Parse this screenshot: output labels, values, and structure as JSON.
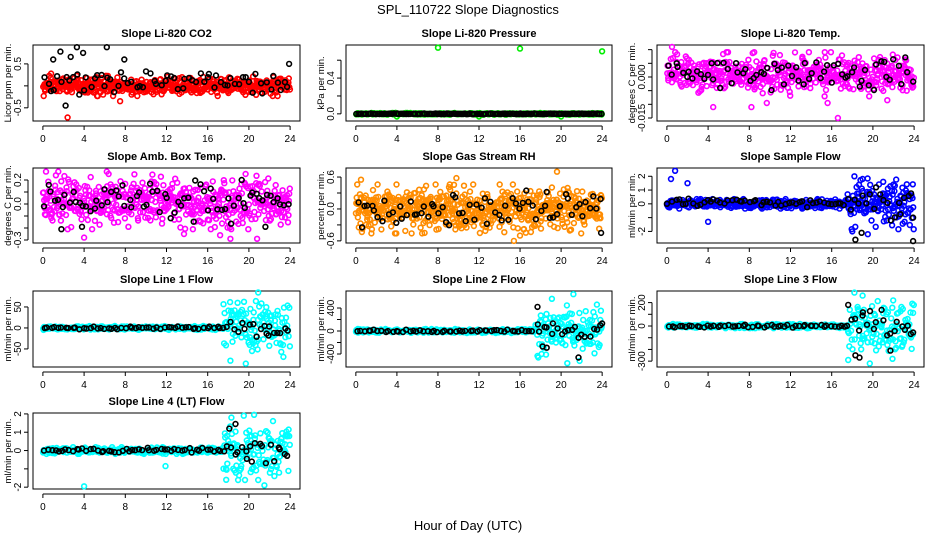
{
  "title": "SPL_110722  Slope Diagnostics",
  "xlabel": "Hour of Day (UTC)",
  "chart_data": [
    {
      "type": "scatter",
      "title": "Slope Li-820 CO2",
      "ylabel": "Licor ppm per min.",
      "color": "#ff0000",
      "xlim": [
        0,
        24
      ],
      "xticks": [
        0,
        4,
        8,
        12,
        16,
        20,
        24
      ],
      "ylim": [
        -0.8,
        0.93
      ],
      "yticks": [
        {
          "v": 0.5,
          "l": "0.5"
        },
        {
          "v": 0,
          "l": ""
        },
        {
          "v": -0.5,
          "l": "-0.5"
        }
      ],
      "cloud": {
        "n": 520,
        "mean": 0,
        "sd": [
          0.1,
          0.1
        ]
      },
      "hourly": {
        "n": 70,
        "mean": 0.1,
        "sd": [
          0.13,
          0.12
        ]
      },
      "outliers": [
        [
          2.4,
          -0.72
        ],
        [
          7.5,
          -0.35
        ],
        [
          0.8,
          0.28
        ]
      ],
      "hourly_outliers": [
        [
          1,
          0.6
        ],
        [
          1.7,
          0.78
        ],
        [
          2.2,
          -0.45
        ],
        [
          2.7,
          0.66
        ],
        [
          3.3,
          0.88
        ],
        [
          3.9,
          0.75
        ],
        [
          6.2,
          0.88
        ],
        [
          7.9,
          0.6
        ],
        [
          23.9,
          0.5
        ]
      ]
    },
    {
      "type": "scatter",
      "title": "Slope Li-820 Pressure",
      "ylabel": "kPa per min.",
      "color": "#00ee00",
      "xlim": [
        0,
        24
      ],
      "xticks": [
        0,
        4,
        8,
        12,
        16,
        20,
        24
      ],
      "ylim": [
        -0.08,
        0.77
      ],
      "yticks": [
        {
          "v": 0,
          "l": "0.0"
        },
        {
          "v": 0.2,
          "l": ""
        },
        {
          "v": 0.4,
          "l": "0.4"
        },
        {
          "v": 0.6,
          "l": ""
        }
      ],
      "cloud": {
        "n": 420,
        "mean": 0,
        "sd": [
          0.004,
          0.004
        ]
      },
      "hourly": {
        "n": 150,
        "mean": 0,
        "sd": [
          0.002,
          0.002
        ]
      },
      "outliers": [
        [
          8,
          0.74
        ],
        [
          16,
          0.73
        ],
        [
          24,
          0.7
        ],
        [
          4,
          -0.03
        ],
        [
          12,
          -0.03
        ],
        [
          20,
          -0.03
        ]
      ],
      "hourly_outliers": []
    },
    {
      "type": "scatter",
      "title": "Slope Li-820 Temp.",
      "ylabel": "degrees C per min.",
      "color": "#ff00ff",
      "xlim": [
        0,
        24
      ],
      "xticks": [
        0,
        4,
        8,
        12,
        16,
        20,
        24
      ],
      "ylim": [
        -0.0161,
        0.0117
      ],
      "yticks": [
        {
          "v": 0.01,
          "l": ""
        },
        {
          "v": 0.005,
          "l": ""
        },
        {
          "v": 0,
          "l": "0.000"
        },
        {
          "v": -0.005,
          "l": ""
        },
        {
          "v": -0.01,
          "l": ""
        },
        {
          "v": -0.015,
          "l": "-0.015"
        }
      ],
      "cloud": {
        "n": 520,
        "mean": 0.001,
        "sd": [
          0.0035,
          0.0035
        ]
      },
      "hourly": {
        "n": 70,
        "mean": 0.001,
        "sd": [
          0.003,
          0.003
        ]
      },
      "outliers": [
        [
          0.5,
          0.011
        ],
        [
          4.5,
          -0.011
        ],
        [
          8.2,
          -0.011
        ],
        [
          9.7,
          -0.0095
        ],
        [
          16.6,
          -0.015
        ],
        [
          21.4,
          -0.0085
        ],
        [
          15.6,
          -0.0095
        ]
      ],
      "hourly_outliers": []
    },
    {
      "type": "scatter",
      "title": "Slope Amb. Box Temp.",
      "ylabel": "degrees C per min.",
      "color": "#ff00ff",
      "xlim": [
        0,
        24
      ],
      "xticks": [
        0,
        4,
        8,
        12,
        16,
        20,
        24
      ],
      "ylim": [
        -0.325,
        0.3
      ],
      "yticks": [
        {
          "v": 0.2,
          "l": "0.2"
        },
        {
          "v": 0.1,
          "l": ""
        },
        {
          "v": 0,
          "l": "0.0"
        },
        {
          "v": -0.1,
          "l": ""
        },
        {
          "v": -0.2,
          "l": ""
        },
        {
          "v": -0.3,
          "l": "-0.3"
        }
      ],
      "cloud": {
        "n": 520,
        "mean": 0.02,
        "sd": [
          0.1,
          0.1
        ]
      },
      "hourly": {
        "n": 70,
        "mean": 0.02,
        "sd": [
          0.08,
          0.08
        ]
      },
      "outliers": [
        [
          0.3,
          0.27
        ],
        [
          1.5,
          0.27
        ],
        [
          6.2,
          0.27
        ],
        [
          4,
          -0.28
        ],
        [
          17.2,
          -0.26
        ],
        [
          18.2,
          -0.29
        ],
        [
          20.8,
          -0.29
        ],
        [
          13.7,
          -0.25
        ]
      ],
      "hourly_outliers": [
        [
          1.8,
          -0.21
        ],
        [
          3.8,
          -0.19
        ],
        [
          19.3,
          0.2
        ],
        [
          21.6,
          -0.19
        ]
      ]
    },
    {
      "type": "scatter",
      "title": "Slope Gas Stream RH",
      "ylabel": "percent per min.",
      "color": "#ff8c00",
      "xlim": [
        0,
        24
      ],
      "xticks": [
        0,
        4,
        8,
        12,
        16,
        20,
        24
      ],
      "ylim": [
        -0.64,
        0.77
      ],
      "yticks": [
        {
          "v": 0.6,
          "l": "0.6"
        },
        {
          "v": 0.3,
          "l": ""
        },
        {
          "v": 0,
          "l": "0.0"
        },
        {
          "v": -0.3,
          "l": ""
        },
        {
          "v": -0.6,
          "l": "-0.6"
        }
      ],
      "cloud": {
        "n": 620,
        "mean": 0,
        "sd": [
          0.2,
          0.2
        ]
      },
      "hourly": {
        "n": 70,
        "mean": 0,
        "sd": [
          0.15,
          0.15
        ]
      },
      "outliers": [
        [
          0.5,
          0.55
        ],
        [
          9.8,
          0.58
        ],
        [
          19.6,
          0.7
        ],
        [
          15.4,
          -0.6
        ],
        [
          16,
          -0.5
        ],
        [
          6.7,
          -0.45
        ]
      ],
      "hourly_outliers": [
        [
          23.9,
          -0.45
        ]
      ]
    },
    {
      "type": "scatter",
      "title": "Slope Sample Flow",
      "ylabel": "ml/min per min.",
      "color": "#0000ff",
      "xlim": [
        0,
        24
      ],
      "xticks": [
        0,
        4,
        8,
        12,
        16,
        20,
        24
      ],
      "ylim": [
        -2.84,
        2.6
      ],
      "yticks": [
        {
          "v": 2,
          "l": "2"
        },
        {
          "v": 1,
          "l": "1"
        },
        {
          "v": 0,
          "l": "0"
        },
        {
          "v": -1,
          "l": ""
        },
        {
          "v": -2,
          "l": "-2"
        }
      ],
      "cloud": {
        "n": 560,
        "mean": 0,
        "sd": [
          0.15,
          0.8
        ]
      },
      "hourly": {
        "n": 70,
        "mean": 0.1,
        "sd": [
          0.15,
          0.6
        ]
      },
      "outliers": [
        [
          0.4,
          1.8
        ],
        [
          0.8,
          2.4
        ],
        [
          2,
          1.5
        ],
        [
          4,
          -1.3
        ],
        [
          18.2,
          2
        ],
        [
          19,
          1.8
        ],
        [
          21,
          1.6
        ],
        [
          19.5,
          -2.2
        ],
        [
          18,
          -2
        ]
      ],
      "hourly_outliers": [
        [
          18.3,
          -2.6
        ],
        [
          18.9,
          -2.1
        ],
        [
          23.9,
          -2.7
        ],
        [
          23.9,
          -1
        ]
      ]
    },
    {
      "type": "scatter",
      "title": "Slope Line 1 Flow",
      "ylabel": "ml/min per min.",
      "color": "#00ffff",
      "xlim": [
        0,
        24
      ],
      "xticks": [
        0,
        4,
        8,
        12,
        16,
        20,
        24
      ],
      "ylim": [
        -93,
        88
      ],
      "yticks": [
        {
          "v": 50,
          "l": "50"
        },
        {
          "v": 0,
          "l": "0"
        },
        {
          "v": -50,
          "l": "-50"
        }
      ],
      "cloud": {
        "n": 460,
        "mean": 0,
        "sd": [
          2,
          30
        ]
      },
      "hourly": {
        "n": 70,
        "mean": 0,
        "sd": [
          1.5,
          10
        ]
      },
      "outliers": [
        [
          20.9,
          85
        ],
        [
          18.9,
          60
        ],
        [
          19.7,
          -85
        ],
        [
          18.2,
          -78
        ],
        [
          20.3,
          -55
        ]
      ],
      "hourly_outliers": [
        [
          21.9,
          -18
        ]
      ]
    },
    {
      "type": "scatter",
      "title": "Slope Line 2 Flow",
      "ylabel": "ml/min per min.",
      "color": "#00ffff",
      "xlim": [
        0,
        24
      ],
      "xticks": [
        0,
        4,
        8,
        12,
        16,
        20,
        24
      ],
      "ylim": [
        -626,
        696
      ],
      "yticks": [
        {
          "v": 400,
          "l": "400"
        },
        {
          "v": 200,
          "l": ""
        },
        {
          "v": 0,
          "l": "0"
        },
        {
          "v": -200,
          "l": ""
        },
        {
          "v": -400,
          "l": "-400"
        }
      ],
      "cloud": {
        "n": 460,
        "mean": 0,
        "sd": [
          15,
          200
        ]
      },
      "hourly": {
        "n": 70,
        "mean": 0,
        "sd": [
          10,
          120
        ]
      },
      "outliers": [
        [
          21.2,
          640
        ],
        [
          19.1,
          560
        ],
        [
          20.6,
          -560
        ],
        [
          21.8,
          -520
        ],
        [
          18.1,
          -400
        ]
      ],
      "hourly_outliers": [
        [
          17.7,
          420
        ],
        [
          18.2,
          -270
        ],
        [
          18.6,
          -290
        ],
        [
          21.7,
          -460
        ],
        [
          24,
          130
        ]
      ]
    },
    {
      "type": "scatter",
      "title": "Slope Line 3 Flow",
      "ylabel": "ml/min per min.",
      "color": "#00ffff",
      "xlim": [
        0,
        24
      ],
      "xticks": [
        0,
        4,
        8,
        12,
        16,
        20,
        24
      ],
      "ylim": [
        -350,
        299
      ],
      "yticks": [
        {
          "v": 200,
          "l": "200"
        },
        {
          "v": 100,
          "l": ""
        },
        {
          "v": 0,
          "l": "0"
        },
        {
          "v": -100,
          "l": ""
        },
        {
          "v": -200,
          "l": ""
        },
        {
          "v": -300,
          "l": "-300"
        }
      ],
      "cloud": {
        "n": 460,
        "mean": 0,
        "sd": [
          8,
          110
        ]
      },
      "hourly": {
        "n": 70,
        "mean": 0,
        "sd": [
          6,
          60
        ]
      },
      "outliers": [
        [
          18.2,
          285
        ],
        [
          19,
          260
        ],
        [
          19.7,
          -320
        ],
        [
          17.6,
          -290
        ],
        [
          21.9,
          -280
        ]
      ],
      "hourly_outliers": [
        [
          17.6,
          180
        ],
        [
          18.3,
          -250
        ],
        [
          18.7,
          -270
        ],
        [
          19,
          90
        ],
        [
          21.7,
          -210
        ],
        [
          23.9,
          -55
        ]
      ]
    },
    {
      "type": "scatter",
      "title": "Slope Line 4 (LT) Flow",
      "ylabel": "ml/min per min.",
      "color": "#00ffff",
      "xlim": [
        0,
        24
      ],
      "xticks": [
        0,
        4,
        8,
        12,
        16,
        20,
        24
      ],
      "ylim": [
        -2.1,
        2.05
      ],
      "yticks": [
        {
          "v": 2,
          "l": "2"
        },
        {
          "v": 1,
          "l": "1"
        },
        {
          "v": 0,
          "l": "0"
        },
        {
          "v": -1,
          "l": ""
        },
        {
          "v": -2,
          "l": "-2"
        }
      ],
      "cloud": {
        "n": 460,
        "mean": 0,
        "sd": [
          0.08,
          0.7
        ]
      },
      "hourly": {
        "n": 70,
        "mean": 0,
        "sd": [
          0.07,
          0.3
        ]
      },
      "outliers": [
        [
          4,
          -1.95
        ],
        [
          11.9,
          -0.85
        ],
        [
          20.5,
          1.95
        ],
        [
          21.5,
          -1.9
        ],
        [
          17.8,
          -1.6
        ],
        [
          19.5,
          1.9
        ],
        [
          18.3,
          1.8
        ]
      ],
      "hourly_outliers": [
        [
          18.1,
          1.2
        ],
        [
          18.7,
          1.45
        ],
        [
          19.8,
          -0.45
        ]
      ]
    }
  ]
}
